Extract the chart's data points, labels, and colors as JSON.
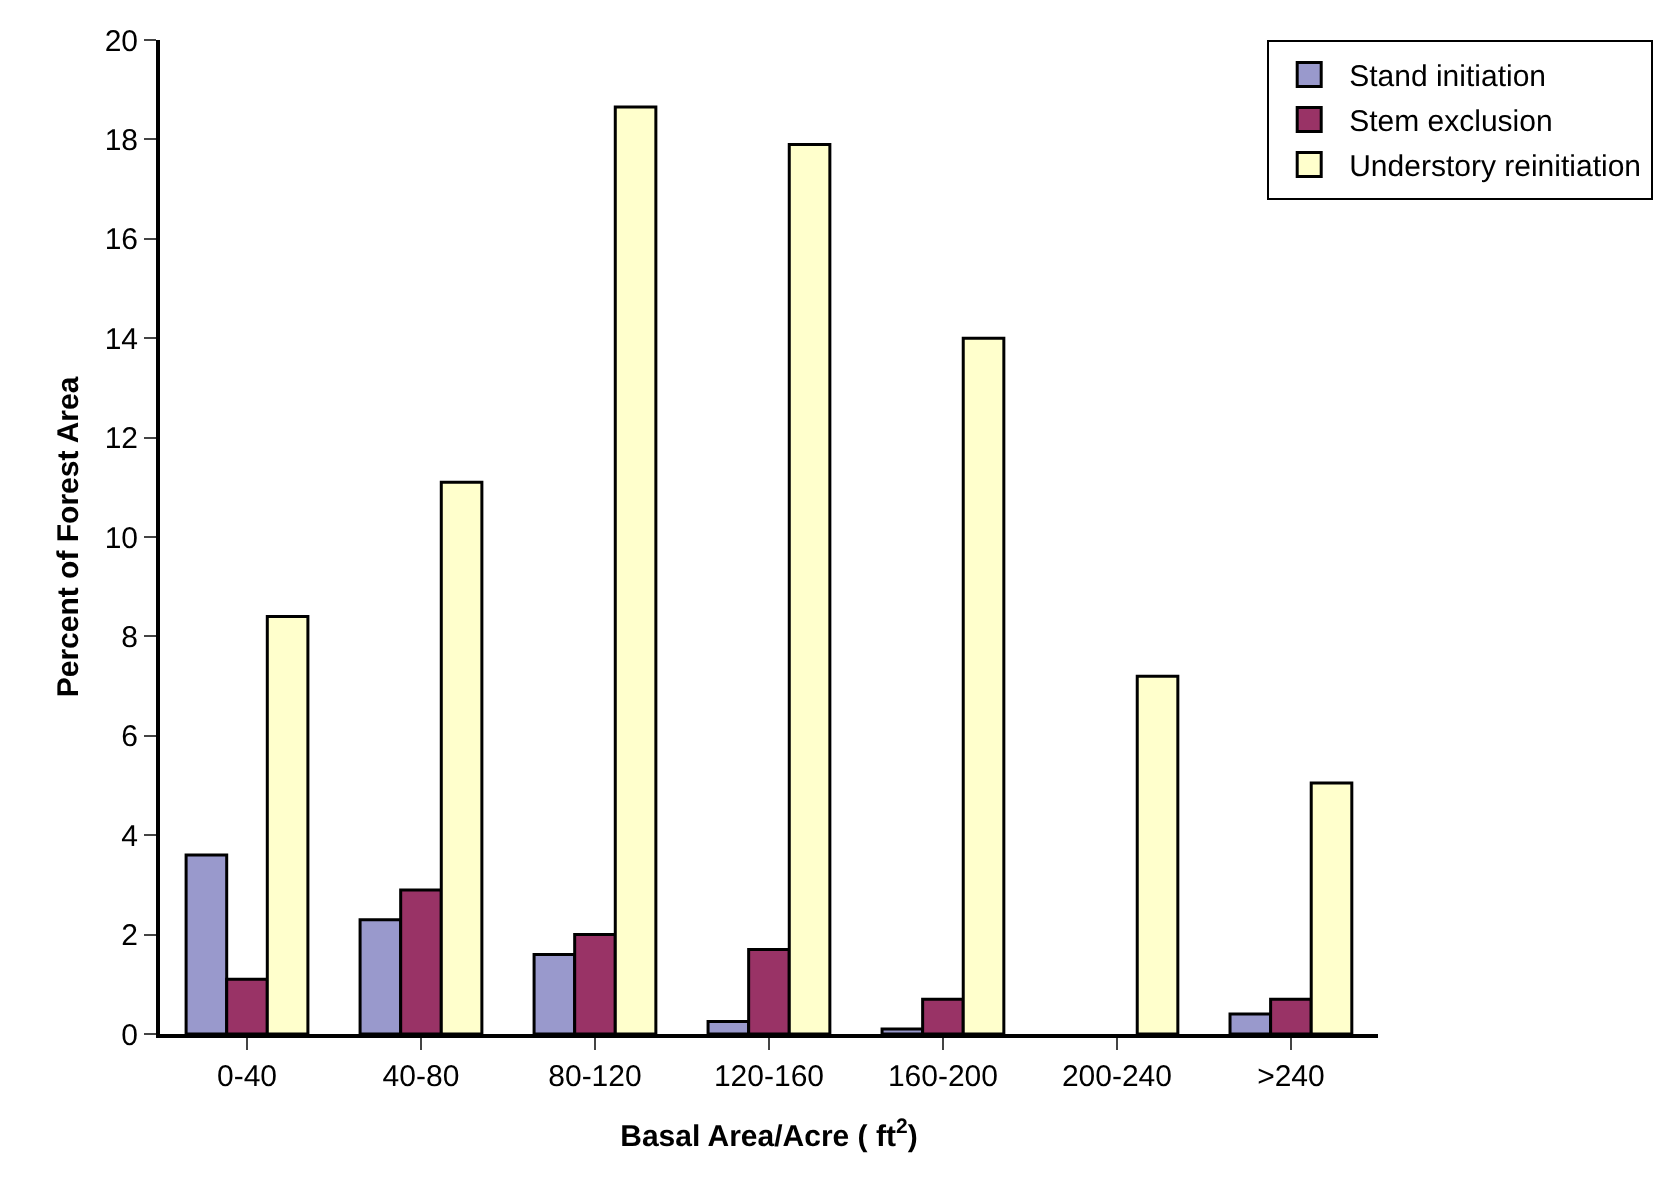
{
  "chart_data": {
    "type": "bar",
    "xlabel": "Basal Area/Acre ( ft$^{2}$)",
    "ylabel": "Percent of Forest Area",
    "categories": [
      "0-40",
      "40-80",
      "80-120",
      "120-160",
      "160-200",
      "200-240",
      ">240"
    ],
    "series": [
      {
        "name": "Stand initiation",
        "color": "#9999cc",
        "values": [
          3.6,
          2.3,
          1.6,
          0.25,
          0.1,
          null,
          0.4
        ]
      },
      {
        "name": "Stem exclusion",
        "color": "#993366",
        "values": [
          1.1,
          2.9,
          2.0,
          1.7,
          0.7,
          null,
          0.7
        ]
      },
      {
        "name": "Understory reinitiation",
        "color": "#ffffcc",
        "values": [
          8.4,
          11.1,
          18.65,
          17.9,
          14.0,
          7.2,
          5.05
        ]
      }
    ],
    "ylim": [
      0,
      20
    ],
    "yticks": [
      0,
      2,
      4,
      6,
      8,
      10,
      12,
      14,
      16,
      18,
      20
    ],
    "grid": false,
    "legend": "top right"
  }
}
